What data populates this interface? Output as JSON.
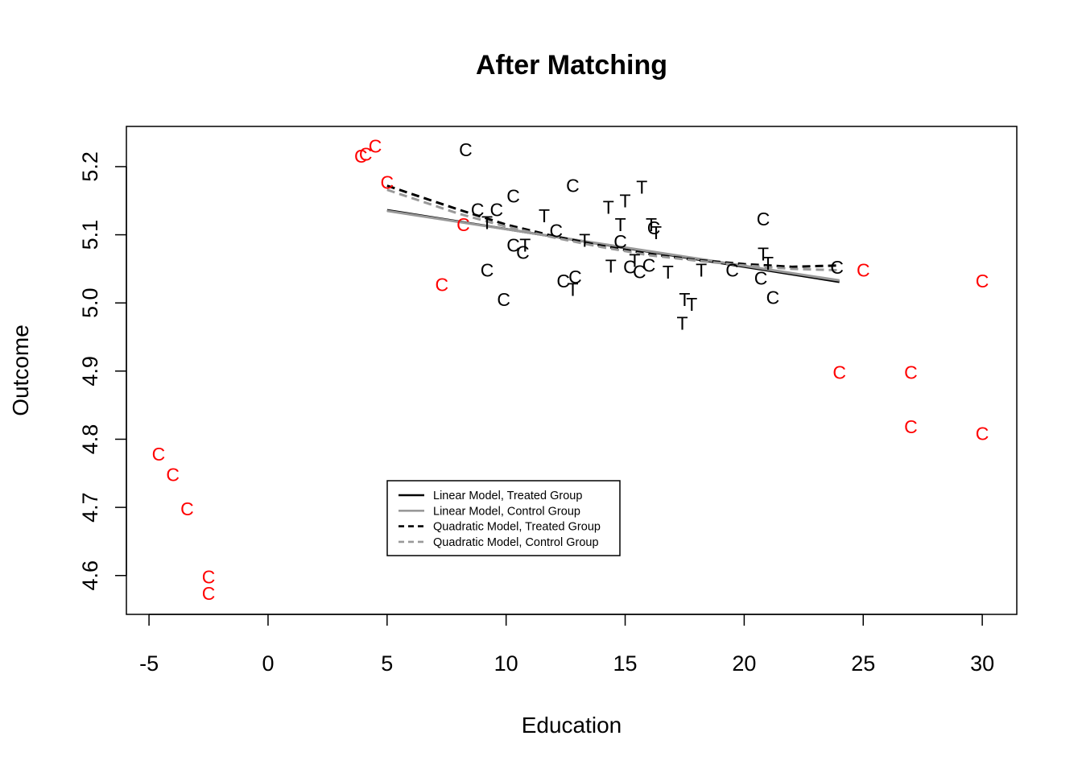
{
  "chart_data": {
    "type": "scatter",
    "title": "After Matching",
    "xlabel": "Education",
    "ylabel": "Outcome",
    "xlim": [
      -5.95,
      31.45
    ],
    "ylim": [
      4.543,
      5.259
    ],
    "x_ticks": [
      -5,
      0,
      5,
      10,
      15,
      20,
      25,
      30
    ],
    "y_ticks": [
      4.6,
      4.7,
      4.8,
      4.9,
      5.0,
      5.1,
      5.2
    ],
    "grid": false,
    "colors": {
      "matched": "#000000",
      "unmatched": "#ff0000",
      "treated_line": "#000000",
      "control_line": "#999999"
    },
    "points": {
      "matched_treated": [
        [
          11.6,
          5.128
        ],
        [
          9.2,
          5.118
        ],
        [
          10.8,
          5.085
        ],
        [
          13.3,
          5.092
        ],
        [
          14.3,
          5.14
        ],
        [
          14.8,
          5.115
        ],
        [
          15.0,
          5.15
        ],
        [
          15.7,
          5.17
        ],
        [
          16.1,
          5.115
        ],
        [
          16.3,
          5.103
        ],
        [
          14.4,
          5.054
        ],
        [
          15.4,
          5.062
        ],
        [
          16.8,
          5.045
        ],
        [
          18.2,
          5.048
        ],
        [
          20.8,
          5.072
        ],
        [
          21.0,
          5.058
        ],
        [
          17.5,
          5.005
        ],
        [
          17.8,
          4.998
        ],
        [
          17.4,
          4.97
        ],
        [
          12.8,
          5.02
        ]
      ],
      "matched_control": [
        [
          8.3,
          5.225
        ],
        [
          12.8,
          5.172
        ],
        [
          10.3,
          5.157
        ],
        [
          8.8,
          5.137
        ],
        [
          9.6,
          5.137
        ],
        [
          12.1,
          5.106
        ],
        [
          10.3,
          5.085
        ],
        [
          10.7,
          5.074
        ],
        [
          14.8,
          5.09
        ],
        [
          15.2,
          5.053
        ],
        [
          15.6,
          5.046
        ],
        [
          16.0,
          5.055
        ],
        [
          16.2,
          5.11
        ],
        [
          9.2,
          5.048
        ],
        [
          12.4,
          5.032
        ],
        [
          12.9,
          5.038
        ],
        [
          9.9,
          5.005
        ],
        [
          20.8,
          5.123
        ],
        [
          19.5,
          5.048
        ],
        [
          20.7,
          5.036
        ],
        [
          21.2,
          5.008
        ],
        [
          23.9,
          5.052
        ]
      ],
      "unmatched_control": [
        [
          3.9,
          5.215
        ],
        [
          4.1,
          5.218
        ],
        [
          4.5,
          5.23
        ],
        [
          5.0,
          5.177
        ],
        [
          8.2,
          5.115
        ],
        [
          7.3,
          5.027
        ],
        [
          -4.6,
          4.778
        ],
        [
          -4.0,
          4.748
        ],
        [
          -3.4,
          4.698
        ],
        [
          -2.5,
          4.598
        ],
        [
          -2.5,
          4.574
        ],
        [
          24.0,
          4.898
        ],
        [
          27.0,
          4.898
        ],
        [
          27.0,
          4.818
        ],
        [
          30.0,
          4.808
        ],
        [
          25.0,
          5.048
        ],
        [
          30.0,
          5.032
        ]
      ]
    },
    "series": [
      {
        "name": "Linear Model, Treated Group",
        "style": "solid",
        "color": "#000000",
        "x": [
          5,
          24
        ],
        "y": [
          5.136,
          5.031
        ]
      },
      {
        "name": "Linear Model, Control Group",
        "style": "solid",
        "color": "#999999",
        "x": [
          5,
          24
        ],
        "y": [
          5.135,
          5.033
        ]
      },
      {
        "name": "Quadratic Model, Treated Group",
        "style": "dashed",
        "color": "#000000",
        "x": [
          5,
          8,
          10,
          12,
          14,
          16,
          18,
          20,
          22,
          24
        ],
        "y": [
          5.172,
          5.137,
          5.115,
          5.098,
          5.084,
          5.072,
          5.063,
          5.057,
          5.053,
          5.055
        ]
      },
      {
        "name": "Quadratic Model, Control Group",
        "style": "dashed",
        "color": "#999999",
        "x": [
          5,
          8,
          10,
          12,
          14,
          16,
          18,
          20,
          22,
          24
        ],
        "y": [
          5.166,
          5.131,
          5.112,
          5.096,
          5.082,
          5.07,
          5.062,
          5.055,
          5.05,
          5.048
        ]
      }
    ],
    "legend": {
      "position": "bottom-left-center",
      "entries": [
        "Linear Model, Treated Group",
        "Linear Model, Control Group",
        "Quadratic Model, Treated Group",
        "Quadratic Model, Control Group"
      ]
    }
  }
}
